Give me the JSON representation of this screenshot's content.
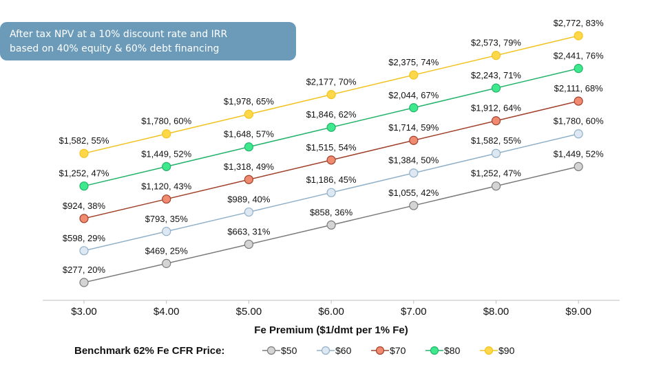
{
  "callout": {
    "line1": "After tax NPV at a 10% discount rate and IRR",
    "line2": "based on 40% equity & 60% debt financing"
  },
  "legend": {
    "title": "Benchmark 62% Fe CFR Price:"
  },
  "chart_data": {
    "type": "line",
    "xlabel": "Fe Premium ($1/dmt per 1% Fe)",
    "ylabel": "",
    "categories": [
      "$3.00",
      "$4.00",
      "$5.00",
      "$6.00",
      "$7.00",
      "$8.00",
      "$9.00"
    ],
    "grid": false,
    "legend_position": "bottom",
    "series": [
      {
        "name": "$50",
        "color": "#7a7a7a",
        "fill": "#d4d4d4",
        "npv": [
          277,
          469,
          663,
          858,
          1055,
          1252,
          1449
        ],
        "irr": [
          20,
          25,
          31,
          36,
          42,
          47,
          52
        ],
        "labels": [
          "$277, 20%",
          "$469, 25%",
          "$663, 31%",
          "$858, 36%",
          "$1,055, 42%",
          "$1,252, 47%",
          "$1,449, 52%"
        ]
      },
      {
        "name": "$60",
        "color": "#8fb0c8",
        "fill": "#dde8f2",
        "npv": [
          598,
          793,
          989,
          1186,
          1384,
          1582,
          1780
        ],
        "irr": [
          29,
          35,
          40,
          45,
          50,
          55,
          60
        ],
        "labels": [
          "$598, 29%",
          "$793, 35%",
          "$989, 40%",
          "$1,186, 45%",
          "$1,384, 50%",
          "$1,582, 55%",
          "$1,780, 60%"
        ]
      },
      {
        "name": "$70",
        "color": "#a0402a",
        "fill": "#f08a70",
        "npv": [
          924,
          1120,
          1318,
          1515,
          1714,
          1912,
          2111
        ],
        "irr": [
          38,
          43,
          49,
          54,
          59,
          64,
          68
        ],
        "labels": [
          "$924, 38%",
          "$1,120, 43%",
          "$1,318, 49%",
          "$1,515, 54%",
          "$1,714, 59%",
          "$1,912, 64%",
          "$2,111, 68%"
        ]
      },
      {
        "name": "$80",
        "color": "#22b36a",
        "fill": "#3ee88c",
        "npv": [
          1252,
          1449,
          1648,
          1846,
          2044,
          2243,
          2441
        ],
        "irr": [
          47,
          52,
          57,
          62,
          67,
          71,
          76
        ],
        "labels": [
          "$1,252, 47%",
          "$1,449, 52%",
          "$1,648, 57%",
          "$1,846, 62%",
          "$2,044, 67%",
          "$2,243, 71%",
          "$2,441, 76%"
        ]
      },
      {
        "name": "$90",
        "color": "#f2c320",
        "fill": "#ffd84a",
        "npv": [
          1582,
          1780,
          1978,
          2177,
          2375,
          2573,
          2772
        ],
        "irr": [
          55,
          60,
          65,
          70,
          74,
          79,
          83
        ],
        "labels": [
          "$1,582, 55%",
          "$1,780, 60%",
          "$1,978, 65%",
          "$2,177, 70%",
          "$2,375, 74%",
          "$2,573, 79%",
          "$2,772, 83%"
        ]
      }
    ]
  }
}
